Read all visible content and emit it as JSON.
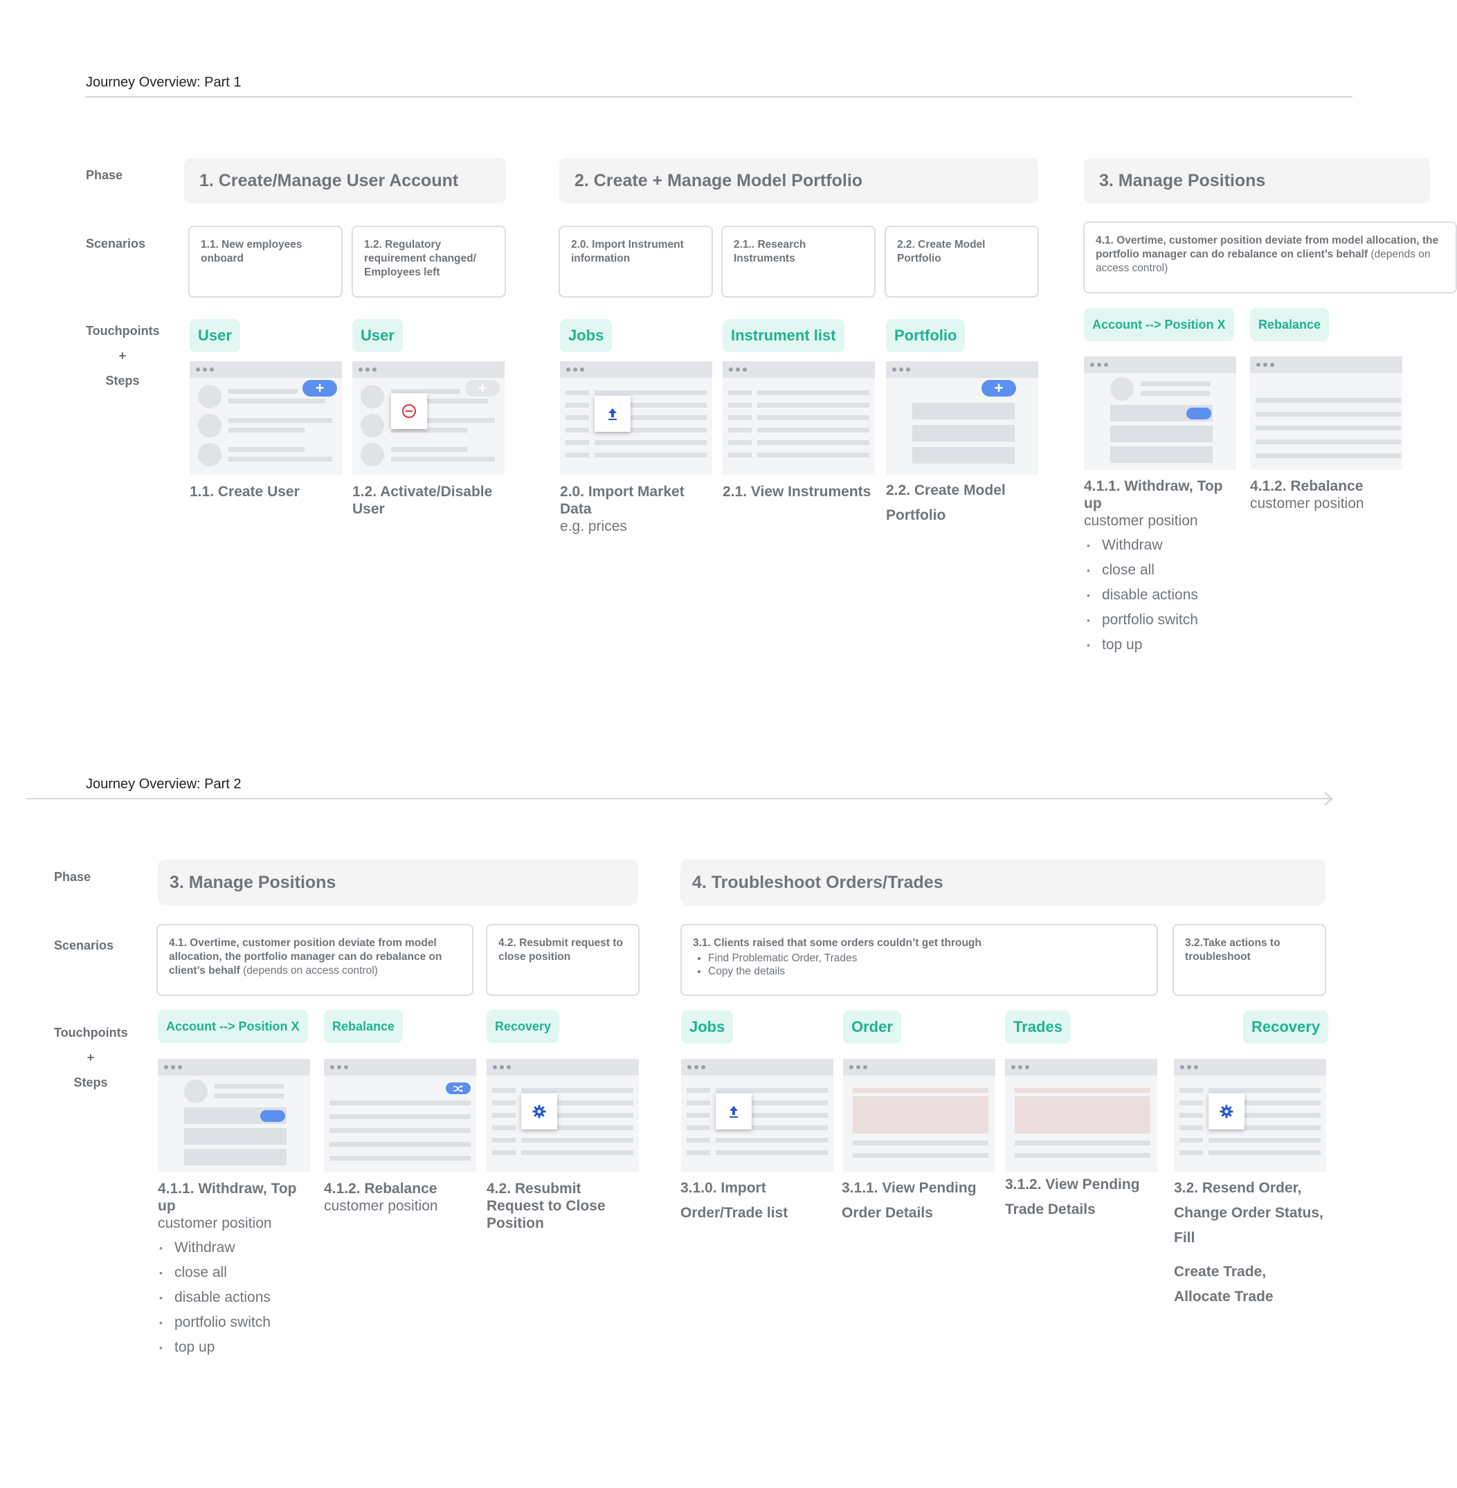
{
  "part1": {
    "title": "Journey Overview: Part 1",
    "labels": {
      "phase": "Phase",
      "scenarios": "Scenarios",
      "touchpoints": "Touchpoints",
      "plus": "+",
      "steps": "Steps"
    },
    "phases": [
      "1. Create/Manage User Account",
      "2. Create + Manage Model Portfolio",
      "3. Manage Positions"
    ],
    "scenarios": [
      {
        "text": "1.1. New employees onboard"
      },
      {
        "text": "1.2. Regulatory requirement changed/ Employees left"
      },
      {
        "text": "2.0. Import Instrument information"
      },
      {
        "text": "2.1.. Research Instruments"
      },
      {
        "text": "2.2. Create Model Portfolio"
      },
      {
        "text": "4.1. Overtime, customer position deviate from model allocation, the portfolio manager can do rebalance on client’s behalf",
        "note": "(depends on access control)"
      }
    ],
    "tags": [
      "User",
      "User",
      "Jobs",
      "Instrument list",
      "Portfolio",
      "Account  --> Position X",
      "Rebalance"
    ],
    "steps": [
      {
        "title": "1.1. Create User",
        "sub": ""
      },
      {
        "title": "1.2. Activate/Disable User",
        "sub": ""
      },
      {
        "title": "2.0. Import Market Data",
        "sub": "e.g. prices"
      },
      {
        "title": "2.1. View Instruments",
        "sub": ""
      },
      {
        "title": "2.2. Create Model Portfolio",
        "sub": ""
      },
      {
        "title": "4.1.1. Withdraw, Top up",
        "sub": "customer position"
      },
      {
        "title": "4.1.2. Rebalance",
        "sub": "customer position"
      }
    ],
    "bullets": [
      "Withdraw",
      "close all",
      "disable actions",
      "portfolio switch",
      "top up"
    ]
  },
  "part2": {
    "title": "Journey Overview: Part 2",
    "labels": {
      "phase": "Phase",
      "scenarios": "Scenarios",
      "touchpoints": "Touchpoints",
      "plus": "+",
      "steps": "Steps"
    },
    "phases": [
      "3. Manage Positions",
      "4. Troubleshoot Orders/Trades"
    ],
    "scenarios": [
      {
        "text": "4.1. Overtime, customer position deviate from model allocation, the portfolio manager can do rebalance on client’s behalf",
        "note": "(depends on access control)"
      },
      {
        "text": "4.2. Resubmit request to close position"
      },
      {
        "text": "3.1.  Clients raised that some orders couldn’t get through",
        "items": [
          "Find Problematic Order, Trades",
          "Copy the details"
        ]
      },
      {
        "text": "3.2.Take actions to troubleshoot"
      }
    ],
    "tags": [
      "Account  --> Position X",
      "Rebalance",
      "Recovery",
      "Jobs",
      "Order",
      "Trades",
      "Recovery"
    ],
    "steps": [
      {
        "title": "4.1.1. Withdraw, Top up",
        "sub": "customer position"
      },
      {
        "title": "4.1.2. Rebalance",
        "sub": "customer position"
      },
      {
        "title": "4.2. Resubmit Request to Close Position",
        "sub": ""
      },
      {
        "title": "3.1.0. Import Order/Trade list"
      },
      {
        "title": "3.1.1. View Pending Order Details"
      },
      {
        "title": "3.1.2. View Pending Trade Details"
      },
      {
        "title": "3.2. Resend Order, Change Order Status, Fill",
        "extra": "Create Trade, Allocate Trade"
      }
    ],
    "bullets": [
      "Withdraw",
      "close all",
      "disable actions",
      "portfolio switch",
      "top up"
    ]
  },
  "icons": {
    "plus": "+",
    "minus": "−",
    "upload": "upload-icon",
    "gear": "gear-icon",
    "shuffle": "shuffle-icon"
  },
  "colors": {
    "tag_bg": "#e3f7f2",
    "tag_text": "#1db38f",
    "pill": "#5b8ff0",
    "phase_bg": "#f4f4f5"
  }
}
